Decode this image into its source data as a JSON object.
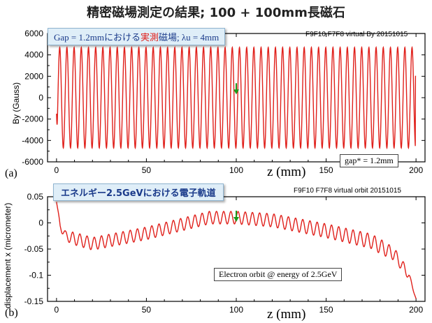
{
  "title": "精密磁場測定の結果; 100 + 100mm長磁石",
  "panels": [
    {
      "tag": "(a)",
      "header_right": "F9F10 F7F8 virtual By 20151015",
      "callout": {
        "prefix": "Gap = 1.2mmにおける",
        "highlight": "実測",
        "suffix": "磁場; λu = 4mm"
      },
      "note": "gap* = 1.2mm",
      "xlabel": "z (mm)",
      "ylabel": "By (Gauss)"
    },
    {
      "tag": "(b)",
      "header_right": "F9F10 F7F8 virtual orbit 20151015",
      "callout": {
        "text": "エネルギー2.5GeVにおける電子軌道"
      },
      "note": "Electron orbit @ energy of 2.5GeV",
      "xlabel": "z (mm)",
      "ylabel": "displacement x (micrometer)"
    }
  ],
  "chart_data": [
    {
      "type": "line",
      "title": "Gap = 1.2mmにおける実測磁場; λu = 4mm",
      "xlabel": "z (mm)",
      "ylabel": "By (Gauss)",
      "xlim": [
        -5,
        205
      ],
      "ylim": [
        -6000,
        6000
      ],
      "xticks": [
        0,
        50,
        100,
        150,
        200
      ],
      "xtick_labels": [
        "0",
        "50",
        "100",
        "150",
        "200"
      ],
      "yticks": [
        -6000,
        -4000,
        -2000,
        0,
        2000,
        4000,
        6000
      ],
      "ytick_labels": [
        "-6000",
        "-4000",
        "-2000",
        "0",
        "2000",
        "4000",
        "6000"
      ],
      "series": [
        {
          "color": "#e0201b",
          "model": "sinusoid",
          "x_start": 0,
          "x_end": 200,
          "period": 4,
          "amplitude": 4700,
          "start_value": -1500,
          "end_value": 2000
        }
      ],
      "marker": {
        "x": 100,
        "y": 700,
        "color": "#1a9a1a"
      },
      "grid": false
    },
    {
      "type": "line",
      "title": "エネルギー2.5GeVにおける電子軌道",
      "xlabel": "z (mm)",
      "ylabel": "displacement x (micrometer)",
      "xlim": [
        -5,
        205
      ],
      "ylim": [
        -0.15,
        0.05
      ],
      "xticks": [
        0,
        50,
        100,
        150,
        200
      ],
      "xtick_labels": [
        "0",
        "50",
        "100",
        "150",
        "200"
      ],
      "yticks": [
        -0.15,
        -0.1,
        -0.05,
        0,
        0.05
      ],
      "ytick_labels": [
        "-0.15",
        "-0.1",
        "-0.05",
        "0",
        "0.05"
      ],
      "series": [
        {
          "color": "#e0201b",
          "model": "oscillating-orbit",
          "period": 4,
          "mean_points": [
            [
              0,
              0.04
            ],
            [
              2,
              -0.005
            ],
            [
              5,
              -0.025
            ],
            [
              20,
              -0.04
            ],
            [
              50,
              -0.02
            ],
            [
              85,
              0.01
            ],
            [
              100,
              0.01
            ],
            [
              120,
              0.005
            ],
            [
              150,
              -0.015
            ],
            [
              175,
              -0.035
            ],
            [
              188,
              -0.06
            ],
            [
              196,
              -0.1
            ],
            [
              200,
              -0.145
            ]
          ],
          "amplitude_points": [
            [
              0,
              0.0
            ],
            [
              3,
              0.008
            ],
            [
              10,
              0.012
            ],
            [
              100,
              0.012
            ],
            [
              180,
              0.014
            ],
            [
              194,
              0.01
            ],
            [
              200,
              0.0
            ]
          ]
        }
      ],
      "marker": {
        "x": 100,
        "y": 0.01,
        "color": "#1a9a1a"
      },
      "grid": false
    }
  ]
}
